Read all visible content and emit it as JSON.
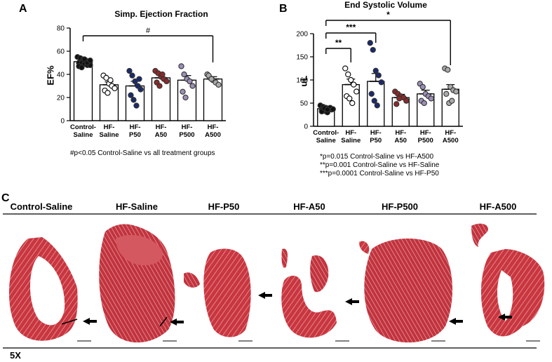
{
  "panels": {
    "a": "A",
    "b": "B",
    "c": "C"
  },
  "chart_data": [
    {
      "type": "bar",
      "title": "Simp. Ejection Fraction",
      "ylabel": "EF%",
      "xlabel": "",
      "ylim": [
        0,
        80
      ],
      "yticks": [
        0,
        20,
        40,
        60,
        80
      ],
      "categories": [
        [
          "Control-",
          "Saline"
        ],
        [
          "HF-",
          "Saline"
        ],
        [
          "HF-",
          "P50"
        ],
        [
          "HF-",
          "A50"
        ],
        [
          "HF-",
          "P500"
        ],
        [
          "HF-",
          "A500"
        ]
      ],
      "values": [
        51,
        31,
        30,
        37,
        35,
        36
      ],
      "errors": [
        1.2,
        2.5,
        4,
        2.5,
        4,
        2
      ],
      "colors": [
        "#111111",
        "#ffffff",
        "#1a2a6c",
        "#8b2a2a",
        "#9b8fb5",
        "#aaaaaa"
      ],
      "points": [
        [
          55,
          54,
          53,
          52,
          51,
          50,
          50,
          49,
          48,
          48,
          47,
          46,
          53,
          50,
          52
        ],
        [
          39,
          37,
          32,
          30,
          28,
          26,
          24,
          35
        ],
        [
          43,
          39,
          34,
          30,
          27,
          22,
          18,
          13,
          36
        ],
        [
          43,
          41,
          38,
          36,
          34,
          33,
          30,
          40
        ],
        [
          47,
          40,
          36,
          34,
          30,
          25,
          20
        ],
        [
          40,
          37,
          35,
          33,
          31,
          39,
          36
        ]
      ],
      "annotation": "#",
      "note": "#p<0.05 Control-Saline vs all treatment groups"
    },
    {
      "type": "bar",
      "title": "End Systolic Volume",
      "ylabel": "uL",
      "xlabel": "",
      "ylim": [
        0,
        200
      ],
      "yticks": [
        0,
        50,
        100,
        150,
        200
      ],
      "categories": [
        [
          "Control-",
          "Saline"
        ],
        [
          "HF-",
          "Saline"
        ],
        [
          "HF-",
          "P50"
        ],
        [
          "HF-",
          "A50"
        ],
        [
          "HF-",
          "P500"
        ],
        [
          "HF-",
          "A500"
        ]
      ],
      "values": [
        38,
        90,
        97,
        62,
        70,
        80
      ],
      "errors": [
        2,
        12,
        17,
        7,
        8,
        10
      ],
      "colors": [
        "#111111",
        "#ffffff",
        "#1a2a6c",
        "#8b2a2a",
        "#9b8fb5",
        "#aaaaaa"
      ],
      "points": [
        [
          45,
          42,
          40,
          38,
          36,
          35,
          33,
          30,
          40,
          37,
          32,
          39,
          36
        ],
        [
          125,
          112,
          100,
          90,
          75,
          65,
          60,
          50
        ],
        [
          180,
          165,
          120,
          110,
          95,
          70,
          55,
          45
        ],
        [
          75,
          70,
          65,
          62,
          55,
          48,
          60
        ],
        [
          92,
          85,
          70,
          65,
          60,
          55,
          50
        ],
        [
          125,
          122,
          85,
          78,
          75,
          70,
          50,
          55
        ]
      ],
      "brackets": [
        "**",
        "***",
        "*"
      ],
      "notes": [
        "*p=0.015 Control-Saline vs HF-A500",
        "**p=0.001 Control-Saline vs HF-Saline",
        "***p=0.0001 Control-Saline vs HF-P50"
      ]
    }
  ],
  "histology": {
    "columns": [
      "Control-Saline",
      "HF-Saline",
      "HF-P50",
      "HF-A50",
      "HF-P500",
      "HF-A500"
    ],
    "magnification": "5X"
  }
}
